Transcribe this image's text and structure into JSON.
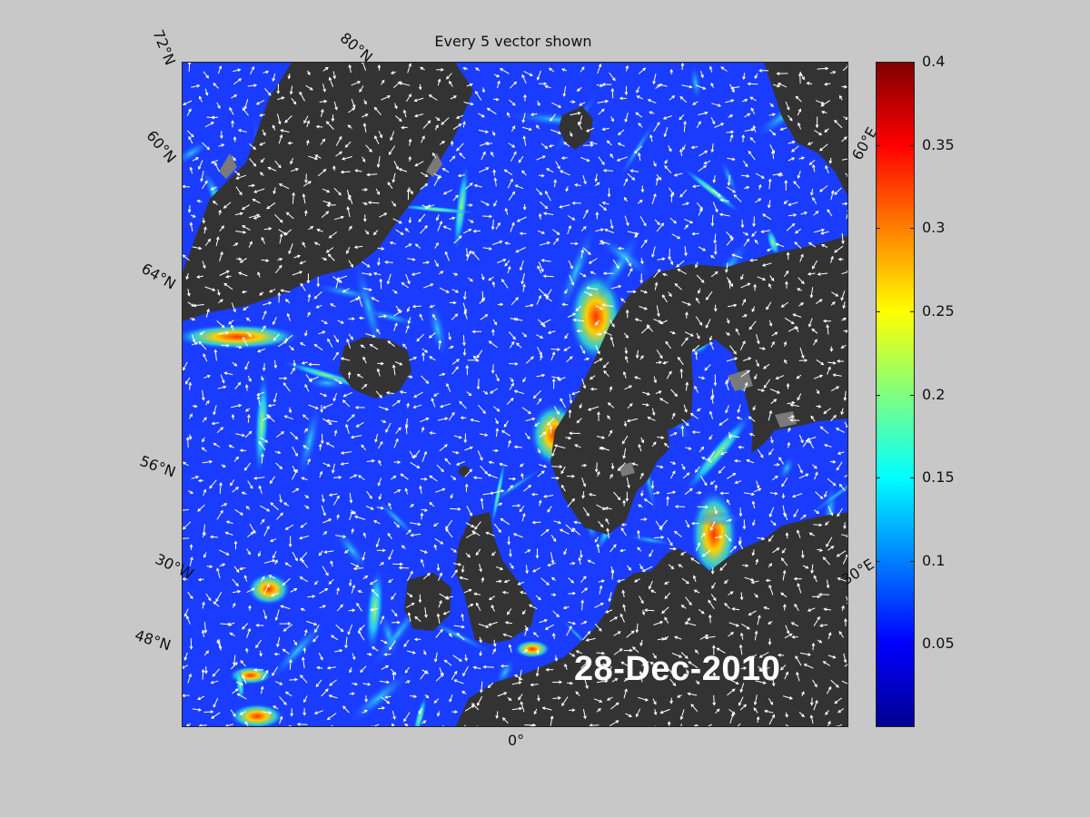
{
  "title": "Every 5 vector shown",
  "date": "28-Dec-2010",
  "graticule_labels": {
    "lat_72": "72°N",
    "lat_80": "80°N",
    "lat_60": "60°N",
    "lat_64": "64°N",
    "lat_56": "56°N",
    "lon_30w": "30°W",
    "lat_48": "48°N",
    "lon_0": "0°",
    "lon_60e": "60°E",
    "lon_30e": "30°E"
  },
  "colorbar": {
    "ticks": [
      "0.4",
      "0.35",
      "0.3",
      "0.25",
      "0.2",
      "0.15",
      "0.1",
      "0.05"
    ],
    "tick_values": [
      0.4,
      0.35,
      0.3,
      0.25,
      0.2,
      0.15,
      0.1,
      0.05
    ],
    "min": 0,
    "max": 0.4,
    "colormap": [
      "#00008f",
      "#0000ff",
      "#007fff",
      "#00ffff",
      "#7fff7f",
      "#ffff00",
      "#ff7f00",
      "#ff0000",
      "#800000"
    ]
  },
  "colors": {
    "background": "#c8c8c8",
    "land": "#333333",
    "ice": "#7f7f7f",
    "ocean_base": "#1a3cff",
    "vectors": "#ffffff"
  }
}
